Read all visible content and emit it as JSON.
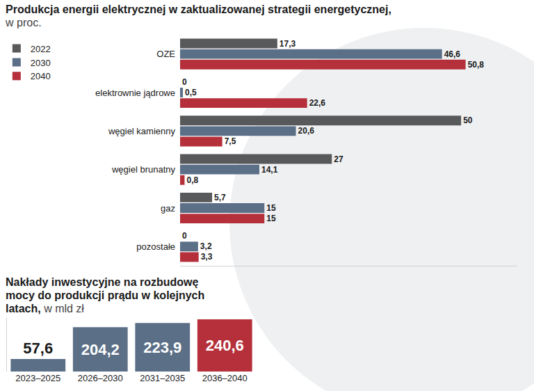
{
  "chart_data": [
    {
      "type": "bar",
      "title": "Produkcja energii elektrycznej w zaktualizowanej strategii energetycznej,",
      "subtitle": "w proc.",
      "orientation": "horizontal",
      "categories": [
        "OZE",
        "elektrownie jądrowe",
        "węgiel kamienny",
        "węgiel brunatny",
        "gaz",
        "pozostałe"
      ],
      "series": [
        {
          "name": "2022",
          "color": "#58595b",
          "values": [
            17.3,
            0,
            50,
            27,
            5.7,
            0
          ],
          "value_labels": [
            "17,3",
            "0",
            "50",
            "27",
            "5,7",
            "0"
          ]
        },
        {
          "name": "2030",
          "color": "#5b6f87",
          "values": [
            46.6,
            0.5,
            20.6,
            14.1,
            15,
            3.2
          ],
          "value_labels": [
            "46,6",
            "0,5",
            "20,6",
            "14,1",
            "15",
            "3,2"
          ]
        },
        {
          "name": "2040",
          "color": "#b5303a",
          "values": [
            50.8,
            22.6,
            7.5,
            0.8,
            15,
            3.3
          ],
          "value_labels": [
            "50,8",
            "22,6",
            "7,5",
            "0,8",
            "15",
            "3,3"
          ]
        }
      ],
      "xlim": [
        0,
        60
      ],
      "xticks": [],
      "tick_labels": "y",
      "data_labels": true,
      "legend": "top-left",
      "grid": false
    },
    {
      "type": "bar",
      "title": "Nakłady inwestycyjne na rozbudowę mocy do produkcji prądu w kolejnych latach,",
      "subtitle": "w mld zł",
      "categories": [
        "2023–2025",
        "2026–2030",
        "2031–2035",
        "2036–2040"
      ],
      "values": [
        57.6,
        204.2,
        223.9,
        240.6
      ],
      "value_labels": [
        "57,6",
        "204,2",
        "223,9",
        "240,6"
      ],
      "colors": [
        "#5b6f87",
        "#5b6f87",
        "#5b6f87",
        "#b5303a"
      ],
      "ylim": [
        0,
        250
      ],
      "yticks": [],
      "tick_labels": "x",
      "data_labels": true,
      "grid": false
    }
  ]
}
